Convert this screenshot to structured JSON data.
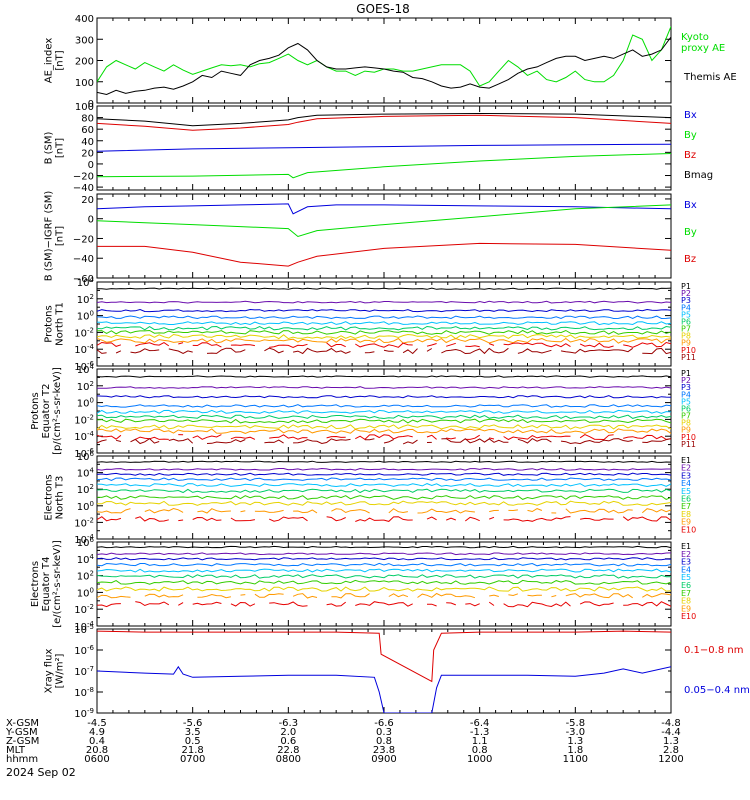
{
  "title": "GOES-18",
  "date_label": "2024 Sep 02",
  "chart_data": [
    {
      "type": "line",
      "panel": "ae",
      "ylabel": "AE_index\n[nT]",
      "ylim": [
        0,
        400
      ],
      "yticks": [
        "400",
        "300",
        "200",
        "100",
        "0"
      ],
      "x_start_hour": 6,
      "x_end_hour": 12,
      "series": [
        {
          "name": "Kyoto\nproxy AE",
          "color": "#00dd00",
          "x": [
            6.0,
            6.1,
            6.2,
            6.3,
            6.4,
            6.5,
            6.6,
            6.7,
            6.8,
            6.9,
            7.0,
            7.1,
            7.2,
            7.3,
            7.4,
            7.5,
            7.6,
            7.7,
            7.8,
            7.9,
            8.0,
            8.1,
            8.2,
            8.3,
            8.4,
            8.5,
            8.6,
            8.7,
            8.8,
            8.9,
            9.0,
            9.1,
            9.2,
            9.3,
            9.4,
            9.5,
            9.6,
            9.7,
            9.8,
            9.9,
            10.0,
            10.1,
            10.2,
            10.3,
            10.4,
            10.5,
            10.6,
            10.7,
            10.8,
            10.9,
            11.0,
            11.1,
            11.2,
            11.3,
            11.4,
            11.5,
            11.6,
            11.7,
            11.8,
            11.9,
            12.0
          ],
          "y": [
            100,
            170,
            200,
            180,
            160,
            190,
            170,
            150,
            180,
            155,
            135,
            150,
            165,
            180,
            175,
            180,
            170,
            185,
            190,
            210,
            230,
            200,
            180,
            200,
            170,
            150,
            150,
            130,
            150,
            145,
            160,
            160,
            150,
            150,
            160,
            170,
            180,
            180,
            180,
            150,
            80,
            100,
            150,
            200,
            170,
            130,
            150,
            110,
            100,
            120,
            150,
            110,
            100,
            100,
            130,
            200,
            320,
            300,
            200,
            250,
            360
          ]
        },
        {
          "name": "Themis AE",
          "color": "#000000",
          "x": [
            6.0,
            6.1,
            6.2,
            6.3,
            6.4,
            6.5,
            6.6,
            6.7,
            6.8,
            6.9,
            7.0,
            7.1,
            7.2,
            7.3,
            7.4,
            7.5,
            7.6,
            7.7,
            7.8,
            7.9,
            8.0,
            8.1,
            8.2,
            8.3,
            8.4,
            8.5,
            8.6,
            8.7,
            8.8,
            8.9,
            9.0,
            9.1,
            9.2,
            9.3,
            9.4,
            9.5,
            9.6,
            9.7,
            9.8,
            9.9,
            10.0,
            10.1,
            10.2,
            10.3,
            10.4,
            10.5,
            10.6,
            10.7,
            10.8,
            10.9,
            11.0,
            11.1,
            11.2,
            11.3,
            11.4,
            11.5,
            11.6,
            11.7,
            11.8,
            11.9,
            12.0
          ],
          "y": [
            50,
            40,
            60,
            45,
            55,
            60,
            70,
            75,
            65,
            80,
            100,
            130,
            120,
            150,
            140,
            130,
            180,
            200,
            210,
            225,
            260,
            280,
            250,
            200,
            170,
            160,
            160,
            165,
            170,
            165,
            160,
            150,
            145,
            120,
            115,
            100,
            80,
            70,
            75,
            90,
            75,
            70,
            90,
            110,
            140,
            160,
            170,
            190,
            210,
            220,
            220,
            200,
            210,
            220,
            210,
            230,
            250,
            220,
            230,
            250,
            310
          ]
        }
      ]
    },
    {
      "type": "line",
      "panel": "b_sm",
      "ylabel": "B (SM)\n[nT]",
      "ylim": [
        -45,
        100
      ],
      "yticks": [
        "100",
        "80",
        "60",
        "40",
        "20",
        "0",
        "−20",
        "−40"
      ],
      "series": [
        {
          "name": "Bx",
          "color": "#0000dd",
          "x": [
            6,
            7,
            8,
            9,
            10,
            11,
            12
          ],
          "y": [
            22,
            26,
            28,
            30,
            32,
            33,
            34
          ]
        },
        {
          "name": "By",
          "color": "#00dd00",
          "x": [
            6,
            7,
            8,
            8.05,
            8.2,
            9,
            10,
            11,
            12
          ],
          "y": [
            -22,
            -21,
            -18,
            -24,
            -15,
            -5,
            5,
            13,
            18
          ]
        },
        {
          "name": "Bz",
          "color": "#dd0000",
          "x": [
            6,
            6.5,
            7,
            7.5,
            8,
            8.1,
            8.3,
            9,
            10,
            11,
            12
          ],
          "y": [
            70,
            65,
            58,
            62,
            68,
            72,
            78,
            82,
            84,
            80,
            70
          ]
        },
        {
          "name": "Bmag",
          "color": "#000000",
          "x": [
            6,
            6.5,
            7,
            7.5,
            8,
            8.1,
            8.3,
            9,
            10,
            11,
            12
          ],
          "y": [
            78,
            74,
            66,
            70,
            76,
            80,
            84,
            86,
            87,
            86,
            80
          ]
        }
      ]
    },
    {
      "type": "line",
      "panel": "b_igrf",
      "ylabel": "B (SM)−IGRF (SM)\n[nT]",
      "ylim": [
        -60,
        25
      ],
      "yticks": [
        "20",
        "0",
        "−20",
        "−40",
        "−60"
      ],
      "series": [
        {
          "name": "Bx",
          "color": "#0000dd",
          "x": [
            6,
            6.5,
            7,
            7.5,
            8,
            8.05,
            8.2,
            8.5,
            9,
            10,
            11,
            12
          ],
          "y": [
            10,
            12,
            13,
            14,
            15,
            5,
            12,
            14,
            14,
            13,
            12,
            10
          ]
        },
        {
          "name": "By",
          "color": "#00dd00",
          "x": [
            6,
            6.5,
            7,
            7.5,
            8,
            8.1,
            8.3,
            9,
            10,
            11,
            12
          ],
          "y": [
            -2,
            -4,
            -6,
            -8,
            -10,
            -18,
            -12,
            -6,
            2,
            10,
            14
          ]
        },
        {
          "name": "Bz",
          "color": "#dd0000",
          "x": [
            6,
            6.5,
            7,
            7.5,
            8,
            8.1,
            8.3,
            9,
            10,
            11,
            12
          ],
          "y": [
            -28,
            -28,
            -34,
            -44,
            -48,
            -44,
            -38,
            -30,
            -25,
            -26,
            -32
          ]
        }
      ]
    },
    {
      "type": "line",
      "panel": "protons_t1",
      "ylabel": "Protons\nNorth T1",
      "log_range": [
        -6,
        4
      ],
      "yticks": [
        "10^4",
        "10^2",
        "10^0",
        "10^-2",
        "10^-4",
        "10^-6"
      ],
      "series": [
        {
          "name": "P1",
          "color": "#000000",
          "level": 3.2
        },
        {
          "name": "P2",
          "color": "#6a0dad",
          "level": 1.6
        },
        {
          "name": "P3",
          "color": "#0000cc",
          "level": 0.6
        },
        {
          "name": "P4",
          "color": "#0077ff",
          "level": -0.2
        },
        {
          "name": "P5",
          "color": "#00c0ff",
          "level": -0.9
        },
        {
          "name": "P6",
          "color": "#00cc66",
          "level": -1.5
        },
        {
          "name": "P7",
          "color": "#33cc00",
          "level": -2.0
        },
        {
          "name": "P8",
          "color": "#e6d200",
          "level": -2.5
        },
        {
          "name": "P9",
          "color": "#ff9900",
          "level": -3.0
        },
        {
          "name": "P10",
          "color": "#e60000",
          "level": -3.5
        },
        {
          "name": "P11",
          "color": "#990000",
          "level": -4.2
        }
      ]
    },
    {
      "type": "line",
      "panel": "protons_t2",
      "ylabel": "Protons\nEquator T2\n[p/(cm²-s-sr-keV)]",
      "log_range": [
        -6,
        4
      ],
      "yticks": [
        "10^4",
        "10^2",
        "10^0",
        "10^-2",
        "10^-4",
        "10^-6"
      ],
      "series": [
        {
          "name": "P1",
          "color": "#000000",
          "level": 3.1
        },
        {
          "name": "P2",
          "color": "#6a0dad",
          "level": 1.8
        },
        {
          "name": "P3",
          "color": "#0000cc",
          "level": 0.7
        },
        {
          "name": "P4",
          "color": "#0077ff",
          "level": -0.4
        },
        {
          "name": "P5",
          "color": "#00c0ff",
          "level": -1.1
        },
        {
          "name": "P6",
          "color": "#00cc66",
          "level": -1.7
        },
        {
          "name": "P7",
          "color": "#33cc00",
          "level": -2.2
        },
        {
          "name": "P8",
          "color": "#e6d200",
          "level": -2.9
        },
        {
          "name": "P9",
          "color": "#ff9900",
          "level": -3.4
        },
        {
          "name": "P10",
          "color": "#e60000",
          "level": -4.1
        },
        {
          "name": "P11",
          "color": "#990000",
          "level": -4.6
        }
      ]
    },
    {
      "type": "line",
      "panel": "electrons_t3",
      "ylabel": "Electrons\nNorth T3",
      "log_range": [
        -4,
        6
      ],
      "yticks": [
        "10^6",
        "10^4",
        "10^2",
        "10^0",
        "10^-2",
        "10^-4"
      ],
      "series": [
        {
          "name": "E1",
          "color": "#000000",
          "level": 5.3
        },
        {
          "name": "E2",
          "color": "#6a0dad",
          "level": 4.4
        },
        {
          "name": "E3",
          "color": "#0000cc",
          "level": 3.8
        },
        {
          "name": "E4",
          "color": "#0077ff",
          "level": 3.2
        },
        {
          "name": "E5",
          "color": "#00c0ff",
          "level": 2.5
        },
        {
          "name": "E6",
          "color": "#00cc66",
          "level": 1.8
        },
        {
          "name": "E7",
          "color": "#33cc00",
          "level": 1.0
        },
        {
          "name": "E8",
          "color": "#e6d200",
          "level": 0.3
        },
        {
          "name": "E9",
          "color": "#ff9900",
          "level": -0.6
        },
        {
          "name": "E10",
          "color": "#e60000",
          "level": -1.6
        }
      ]
    },
    {
      "type": "line",
      "panel": "electrons_t4",
      "ylabel": "Electrons\nEquator T4\n[e/(cm²-s-sr-keV)]",
      "log_range": [
        -4,
        6
      ],
      "yticks": [
        "10^6",
        "10^4",
        "10^2",
        "10^0",
        "10^-2",
        "10^-4"
      ],
      "series": [
        {
          "name": "E1",
          "color": "#000000",
          "level": 5.4
        },
        {
          "name": "E2",
          "color": "#6a0dad",
          "level": 4.6
        },
        {
          "name": "E3",
          "color": "#0000cc",
          "level": 4.0
        },
        {
          "name": "E4",
          "color": "#0077ff",
          "level": 3.3
        },
        {
          "name": "E5",
          "color": "#00c0ff",
          "level": 2.6
        },
        {
          "name": "E6",
          "color": "#00cc66",
          "level": 1.9
        },
        {
          "name": "E7",
          "color": "#33cc00",
          "level": 1.2
        },
        {
          "name": "E8",
          "color": "#e6d200",
          "level": 0.4
        },
        {
          "name": "E9",
          "color": "#ff9900",
          "level": -0.4
        },
        {
          "name": "E10",
          "color": "#e60000",
          "level": -1.4
        }
      ]
    },
    {
      "type": "line",
      "panel": "xray",
      "ylabel": "Xray flux\n[W/m²]",
      "log_range": [
        -9,
        -5
      ],
      "yticks": [
        "10^-5",
        "10^-6",
        "10^-7",
        "10^-8",
        "10^-9"
      ],
      "series": [
        {
          "name": "0.1−0.8 nm",
          "color": "#dd0000",
          "x": [
            6.0,
            6.5,
            7.0,
            7.5,
            8.0,
            8.5,
            8.95,
            8.97,
            9.5,
            9.52,
            9.6,
            10.0,
            10.5,
            11.0,
            11.5,
            12.0
          ],
          "y": [
            -5.1,
            -5.15,
            -5.15,
            -5.15,
            -5.15,
            -5.15,
            -5.2,
            -6.2,
            -7.5,
            -6.0,
            -5.2,
            -5.15,
            -5.15,
            -5.15,
            -5.1,
            -5.15
          ]
        },
        {
          "name": "0.05−0.4 nm",
          "color": "#0000dd",
          "x": [
            6.0,
            6.5,
            6.8,
            6.85,
            6.9,
            7.0,
            7.5,
            8.0,
            8.5,
            8.9,
            8.95,
            9.0,
            9.5,
            9.55,
            9.6,
            10.0,
            10.5,
            11.0,
            11.3,
            11.5,
            11.7,
            12.0
          ],
          "y": [
            -7.0,
            -7.1,
            -7.15,
            -6.8,
            -7.15,
            -7.3,
            -7.25,
            -7.2,
            -7.2,
            -7.3,
            -8.0,
            -9.0,
            -9.0,
            -7.8,
            -7.2,
            -7.2,
            -7.2,
            -7.25,
            -7.1,
            -6.9,
            -7.1,
            -6.8
          ]
        }
      ]
    }
  ],
  "x_axis": {
    "tick_hours": [
      6,
      7,
      8,
      9,
      10,
      11,
      12
    ],
    "row_labels": [
      "X-GSM",
      "Y-GSM",
      "Z-GSM",
      "MLT",
      "hhmm"
    ],
    "rows": [
      [
        "-4.5",
        "-5.6",
        "-6.3",
        "-6.6",
        "-6.4",
        "-5.8",
        "-4.8"
      ],
      [
        "4.9",
        "3.5",
        "2.0",
        "0.3",
        "-1.3",
        "-3.0",
        "-4.4"
      ],
      [
        "0.4",
        "0.5",
        "0.6",
        "0.8",
        "1.1",
        "1.3",
        "1.3"
      ],
      [
        "20.8",
        "21.8",
        "22.8",
        "23.8",
        "0.8",
        "1.8",
        "2.8"
      ],
      [
        "0600",
        "0700",
        "0800",
        "0900",
        "1000",
        "1100",
        "1200"
      ]
    ]
  }
}
